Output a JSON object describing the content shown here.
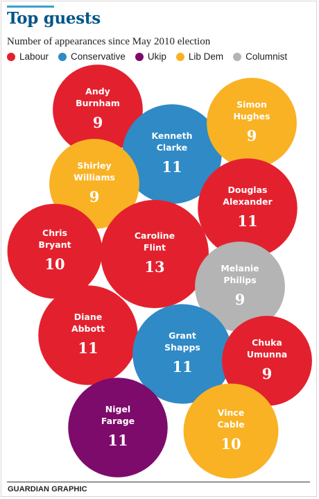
{
  "chart_data": {
    "type": "bubble",
    "title": "Top guests",
    "subtitle": "Number of appearances since May 2010 election",
    "legend": [
      {
        "name": "Labour",
        "color": "#e3212e"
      },
      {
        "name": "Conservative",
        "color": "#2f8ac6"
      },
      {
        "name": "Ukip",
        "color": "#7d0b6b"
      },
      {
        "name": "Lib Dem",
        "color": "#f9b224"
      },
      {
        "name": "Columnist",
        "color": "#b4b4b4"
      }
    ],
    "bubbles": [
      {
        "name": [
          "Andy",
          "Burnham"
        ],
        "value": 9,
        "party": "Labour"
      },
      {
        "name": [
          "Kenneth",
          "Clarke"
        ],
        "value": 11,
        "party": "Conservative"
      },
      {
        "name": [
          "Simon",
          "Hughes"
        ],
        "value": 9,
        "party": "Lib Dem"
      },
      {
        "name": [
          "Shirley",
          "Williams"
        ],
        "value": 9,
        "party": "Lib Dem"
      },
      {
        "name": [
          "Douglas",
          "Alexander"
        ],
        "value": 11,
        "party": "Labour"
      },
      {
        "name": [
          "Chris",
          "Bryant"
        ],
        "value": 10,
        "party": "Labour"
      },
      {
        "name": [
          "Caroline",
          "Flint"
        ],
        "value": 13,
        "party": "Labour"
      },
      {
        "name": [
          "Melanie",
          "Philips"
        ],
        "value": 9,
        "party": "Columnist"
      },
      {
        "name": [
          "Diane",
          "Abbott"
        ],
        "value": 11,
        "party": "Labour"
      },
      {
        "name": [
          "Grant",
          "Shapps"
        ],
        "value": 11,
        "party": "Conservative"
      },
      {
        "name": [
          "Chuka",
          "Umunna"
        ],
        "value": 9,
        "party": "Labour"
      },
      {
        "name": [
          "Nigel",
          "Farage"
        ],
        "value": 11,
        "party": "Ukip"
      },
      {
        "name": [
          "Vince",
          "Cable"
        ],
        "value": 10,
        "party": "Lib Dem"
      }
    ]
  },
  "footer": "GUARDIAN GRAPHIC"
}
